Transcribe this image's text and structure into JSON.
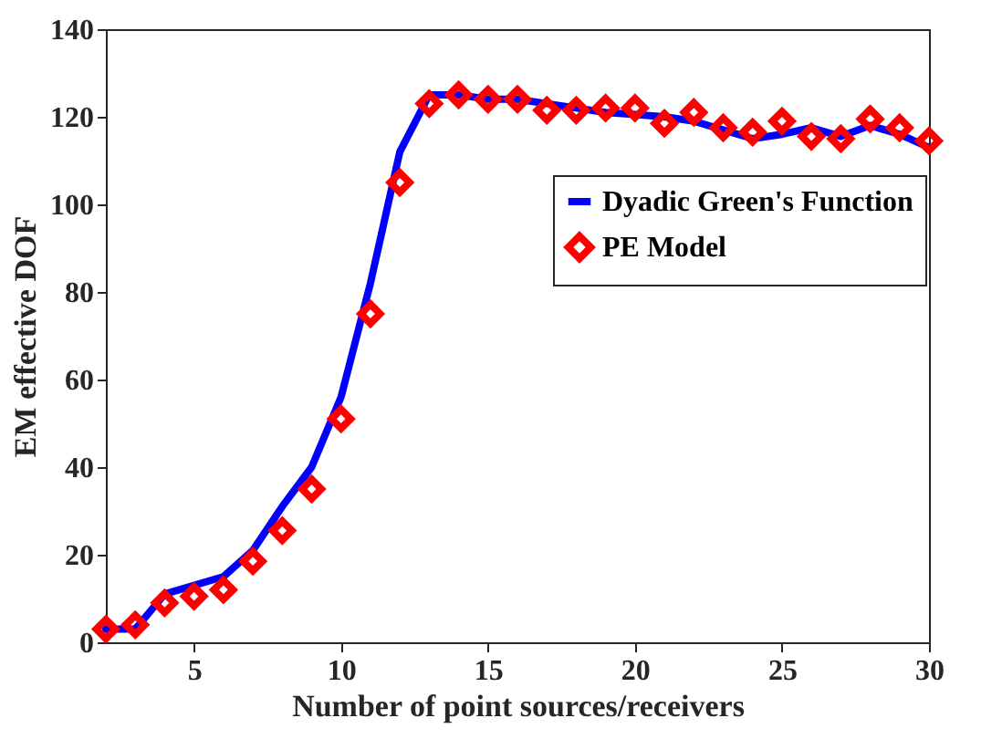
{
  "chart_data": {
    "type": "line",
    "xlabel": "Number of point sources/receivers",
    "ylabel": "EM effective DOF",
    "x": [
      2,
      3,
      4,
      5,
      6,
      7,
      8,
      9,
      10,
      11,
      12,
      13,
      14,
      15,
      16,
      17,
      18,
      19,
      20,
      21,
      22,
      23,
      24,
      25,
      26,
      27,
      28,
      29,
      30
    ],
    "series": [
      {
        "name": "Dyadic Green's Function",
        "color": "#0000ff",
        "marker": "none",
        "values": [
          3,
          3,
          11,
          13,
          15,
          21,
          31,
          40,
          56,
          82,
          112,
          125,
          125,
          124,
          124,
          123,
          122,
          121,
          120.5,
          120,
          119,
          117,
          115,
          116,
          117.5,
          115.5,
          118,
          116,
          113
        ]
      },
      {
        "name": "PE Model",
        "type": "scatter",
        "color": "#ff0000",
        "marker": "diamond",
        "values": [
          3,
          4,
          9,
          10.5,
          12,
          18.5,
          25.5,
          35,
          51,
          75,
          105,
          123,
          125,
          124,
          124,
          121.5,
          121.5,
          122,
          122,
          118.5,
          121,
          117.5,
          116.5,
          119,
          115.5,
          115,
          119.5,
          117.5,
          114.5
        ]
      }
    ],
    "xlim": [
      2,
      30
    ],
    "xticks": [
      5,
      10,
      15,
      20,
      25,
      30
    ],
    "ylim": [
      0,
      140
    ],
    "yticks": [
      0,
      20,
      40,
      60,
      80,
      100,
      120,
      140
    ],
    "grid": false,
    "legend": "top right"
  }
}
